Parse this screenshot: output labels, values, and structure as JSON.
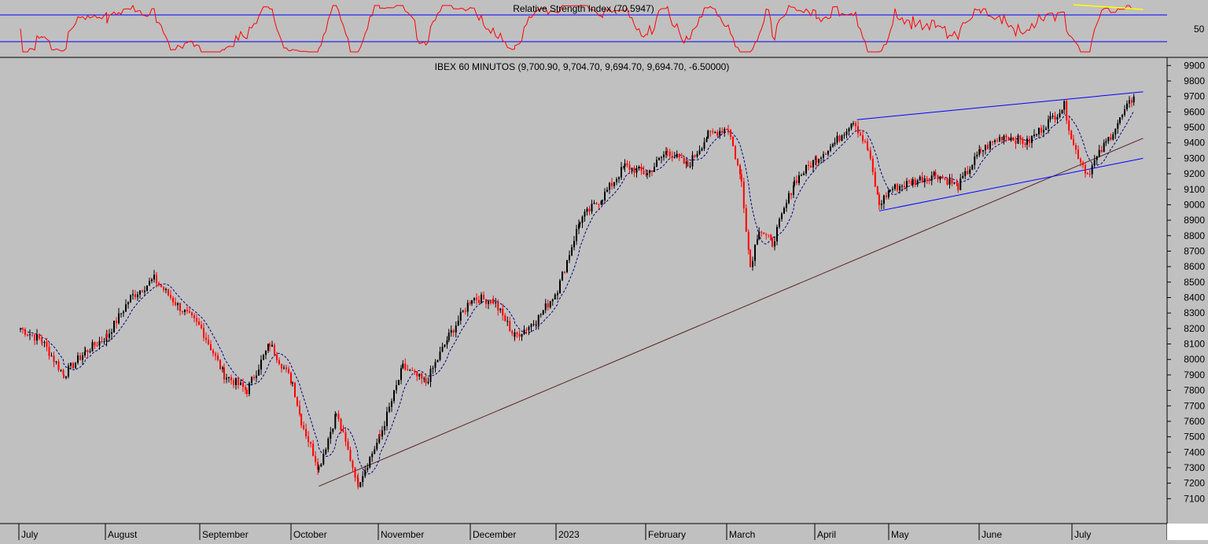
{
  "chart_data": [
    {
      "type": "line",
      "title": "Relative Strength Index (70.5947)",
      "indicator": "RSI",
      "current_value": 70.5947,
      "reference_levels": [
        30,
        70
      ],
      "ytick_labels": [
        "50"
      ],
      "colors": {
        "line": "#ff0000",
        "levels": "#0000ff",
        "annotation": "#ffff00"
      },
      "annotations": [
        {
          "type": "trendline",
          "color": "yellow",
          "from_month": "July",
          "note": "descending line over RSI peaks"
        }
      ]
    },
    {
      "type": "candlestick",
      "title": "IBEX 60 MINUTOS (9,700.90, 9,704.70, 9,694.70, 9,694.70, -6.50000)",
      "ohlc_last": {
        "open": 9700.9,
        "high": 9704.7,
        "low": 9694.7,
        "close": 9694.7,
        "change": -6.5
      },
      "ylim": [
        7000,
        9950
      ],
      "yticks": [
        7100,
        7200,
        7300,
        7400,
        7500,
        7600,
        7700,
        7800,
        7900,
        8000,
        8100,
        8200,
        8300,
        8400,
        8500,
        8600,
        8700,
        8800,
        8900,
        9000,
        9100,
        9200,
        9300,
        9400,
        9500,
        9600,
        9700,
        9800,
        9900
      ],
      "x_labels": [
        "July",
        "August",
        "September",
        "October",
        "November",
        "December",
        "2023",
        "February",
        "March",
        "April",
        "May",
        "June",
        "July"
      ],
      "series": [
        {
          "name": "price",
          "x": [
            0.0,
            0.25,
            0.5,
            0.75,
            1.0,
            1.25,
            1.5,
            1.75,
            2.0,
            2.25,
            2.5,
            2.75,
            3.0,
            3.1,
            3.3,
            3.5,
            3.75,
            4.0,
            4.25,
            4.5,
            4.75,
            5.0,
            5.25,
            5.5,
            5.75,
            6.0,
            6.25,
            6.5,
            6.75,
            7.0,
            7.25,
            7.5,
            7.75,
            8.0,
            8.15,
            8.25,
            8.35,
            8.5,
            8.75,
            9.0,
            9.25,
            9.5,
            9.7,
            9.85,
            10.0,
            10.25,
            10.5,
            10.75,
            11.0,
            11.25,
            11.5,
            11.75,
            11.9,
            12.0,
            12.15,
            12.35,
            12.5,
            12.65
          ],
          "values": [
            8200,
            8120,
            7900,
            8050,
            8150,
            8400,
            8520,
            8350,
            8200,
            7900,
            7800,
            8100,
            7850,
            7600,
            7300,
            7650,
            7200,
            7500,
            7950,
            7850,
            8150,
            8400,
            8380,
            8150,
            8250,
            8450,
            8900,
            9050,
            9250,
            9200,
            9350,
            9250,
            9450,
            9500,
            9150,
            8600,
            8850,
            8750,
            9150,
            9300,
            9400,
            9550,
            9350,
            9000,
            9100,
            9150,
            9200,
            9120,
            9350,
            9450,
            9400,
            9550,
            9640,
            9380,
            9200,
            9400,
            9550,
            9700
          ]
        }
      ],
      "trendlines": [
        {
          "name": "long-term support",
          "color": "#5a2020",
          "from": [
            3.3,
            7180
          ],
          "to": [
            12.75,
            9430
          ]
        },
        {
          "name": "channel top",
          "color": "#0000ff",
          "from": [
            9.55,
            9550
          ],
          "to": [
            12.75,
            9730
          ]
        },
        {
          "name": "channel bottom",
          "color": "#0000ff",
          "from": [
            9.85,
            8960
          ],
          "to": [
            12.75,
            9300
          ]
        }
      ],
      "colors": {
        "up": "#000000",
        "down": "#ff0000",
        "moving_average": "#000080"
      }
    }
  ]
}
